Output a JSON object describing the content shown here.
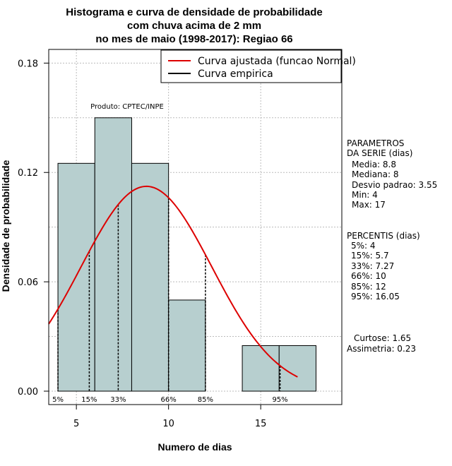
{
  "chart_data": {
    "type": "histogram",
    "title_lines": [
      "Histograma e curva de densidade de probabilidade",
      "com chuva acima de 2 mm",
      "no mes de maio (1998-2017): Regiao 66"
    ],
    "xlabel": "Numero de dias",
    "ylabel": "Densidade de probabilidade",
    "xlim": [
      3.5,
      19.4
    ],
    "ylim": [
      0,
      0.1875
    ],
    "x_ticks": [
      5,
      10,
      15
    ],
    "x_tick_labels": [
      "5",
      "10",
      "15"
    ],
    "y_ticks": [
      0,
      0.06,
      0.12,
      0.18
    ],
    "y_tick_labels": [
      "0.00",
      "0.06",
      "0.12",
      "0.18"
    ],
    "grid": true,
    "bins": [
      {
        "start": 4,
        "end": 6,
        "density": 0.125
      },
      {
        "start": 6,
        "end": 8,
        "density": 0.15
      },
      {
        "start": 8,
        "end": 10,
        "density": 0.125
      },
      {
        "start": 10,
        "end": 12,
        "density": 0.05
      },
      {
        "start": 12,
        "end": 14,
        "density": 0
      },
      {
        "start": 14,
        "end": 16,
        "density": 0.025
      },
      {
        "start": 16,
        "end": 18,
        "density": 0.025
      }
    ],
    "bar_color": "#b7cfcf",
    "curve_color": "#dd0000",
    "normal_curve": {
      "name": "Curva ajustada (funcao Normal)",
      "mean": 8.8,
      "sd": 3.55,
      "x_from": 3.5,
      "x_to": 17
    },
    "percentile_lines": [
      {
        "label": "5%",
        "x": 4
      },
      {
        "label": "15%",
        "x": 5.7
      },
      {
        "label": "33%",
        "x": 7.27
      },
      {
        "label": "66%",
        "x": 10
      },
      {
        "label": "85%",
        "x": 12
      },
      {
        "label": "95%",
        "x": 16.05
      }
    ],
    "legend": [
      {
        "label": "Curva ajustada (funcao Normal)",
        "color": "#dd0000"
      },
      {
        "label": "Curva empirica",
        "color": "#000000"
      }
    ],
    "legend_position": "top-right",
    "annotation": "Produto: CPTEC/INPE",
    "parametros": {
      "title_lines": [
        "PARAMETROS",
        "DA SERIE (dias)"
      ],
      "items": [
        "Media: 8.8",
        "Mediana: 8",
        "Desvio padrao: 3.55",
        "Min: 4",
        "Max: 17"
      ]
    },
    "percentis": {
      "title": "PERCENTIS (dias)",
      "items": [
        "5%: 4",
        "15%: 5.7",
        "33%: 7.27",
        "66%: 10",
        "85%: 12",
        "95%: 16.05"
      ]
    },
    "shape_stats": [
      "Curtose: 1.65",
      "Assimetria: 0.23"
    ]
  }
}
